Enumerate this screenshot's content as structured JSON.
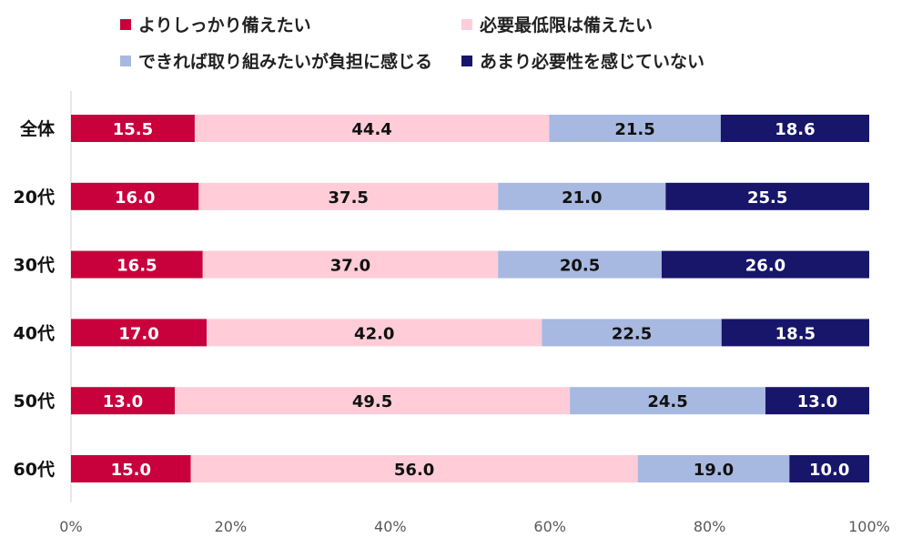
{
  "chart_data": {
    "type": "bar",
    "orientation": "horizontal",
    "stacked": true,
    "categories": [
      "全体",
      "20代",
      "30代",
      "40代",
      "50代",
      "60代"
    ],
    "series": [
      {
        "name": "よりしっかり備えたい",
        "color": "#c8003c",
        "label_color": "#ffffff",
        "values": [
          15.5,
          16.0,
          16.5,
          17.0,
          13.0,
          15.0
        ],
        "labels": [
          "15.5",
          "16.0",
          "16.5",
          "17.0",
          "13.0",
          "15.0"
        ]
      },
      {
        "name": "必要最低限は備えたい",
        "color": "#ffccd8",
        "label_color": "#111111",
        "values": [
          44.4,
          37.5,
          37.0,
          42.0,
          49.5,
          56.0
        ],
        "labels": [
          "44.4",
          "37.5",
          "37.0",
          "42.0",
          "49.5",
          "56.0"
        ]
      },
      {
        "name": "できれば取り組みたいが負担に感じる",
        "color": "#a7b9e1",
        "label_color": "#111111",
        "values": [
          21.5,
          21.0,
          20.5,
          22.5,
          24.5,
          19.0
        ],
        "labels": [
          "21.5",
          "21.0",
          "20.5",
          "22.5",
          "24.5",
          "19.0"
        ]
      },
      {
        "name": "あまり必要性を感じていない",
        "color": "#17166b",
        "label_color": "#ffffff",
        "values": [
          18.6,
          25.5,
          26.0,
          18.5,
          13.0,
          10.0
        ],
        "labels": [
          "18.6",
          "25.5",
          "26.0",
          "18.5",
          "13.0",
          "10.0"
        ]
      }
    ],
    "xlim": [
      0,
      100
    ],
    "x_ticks": [
      "0%",
      "20%",
      "40%",
      "60%",
      "80%",
      "100%"
    ],
    "legend_position": "top",
    "grid": false
  }
}
